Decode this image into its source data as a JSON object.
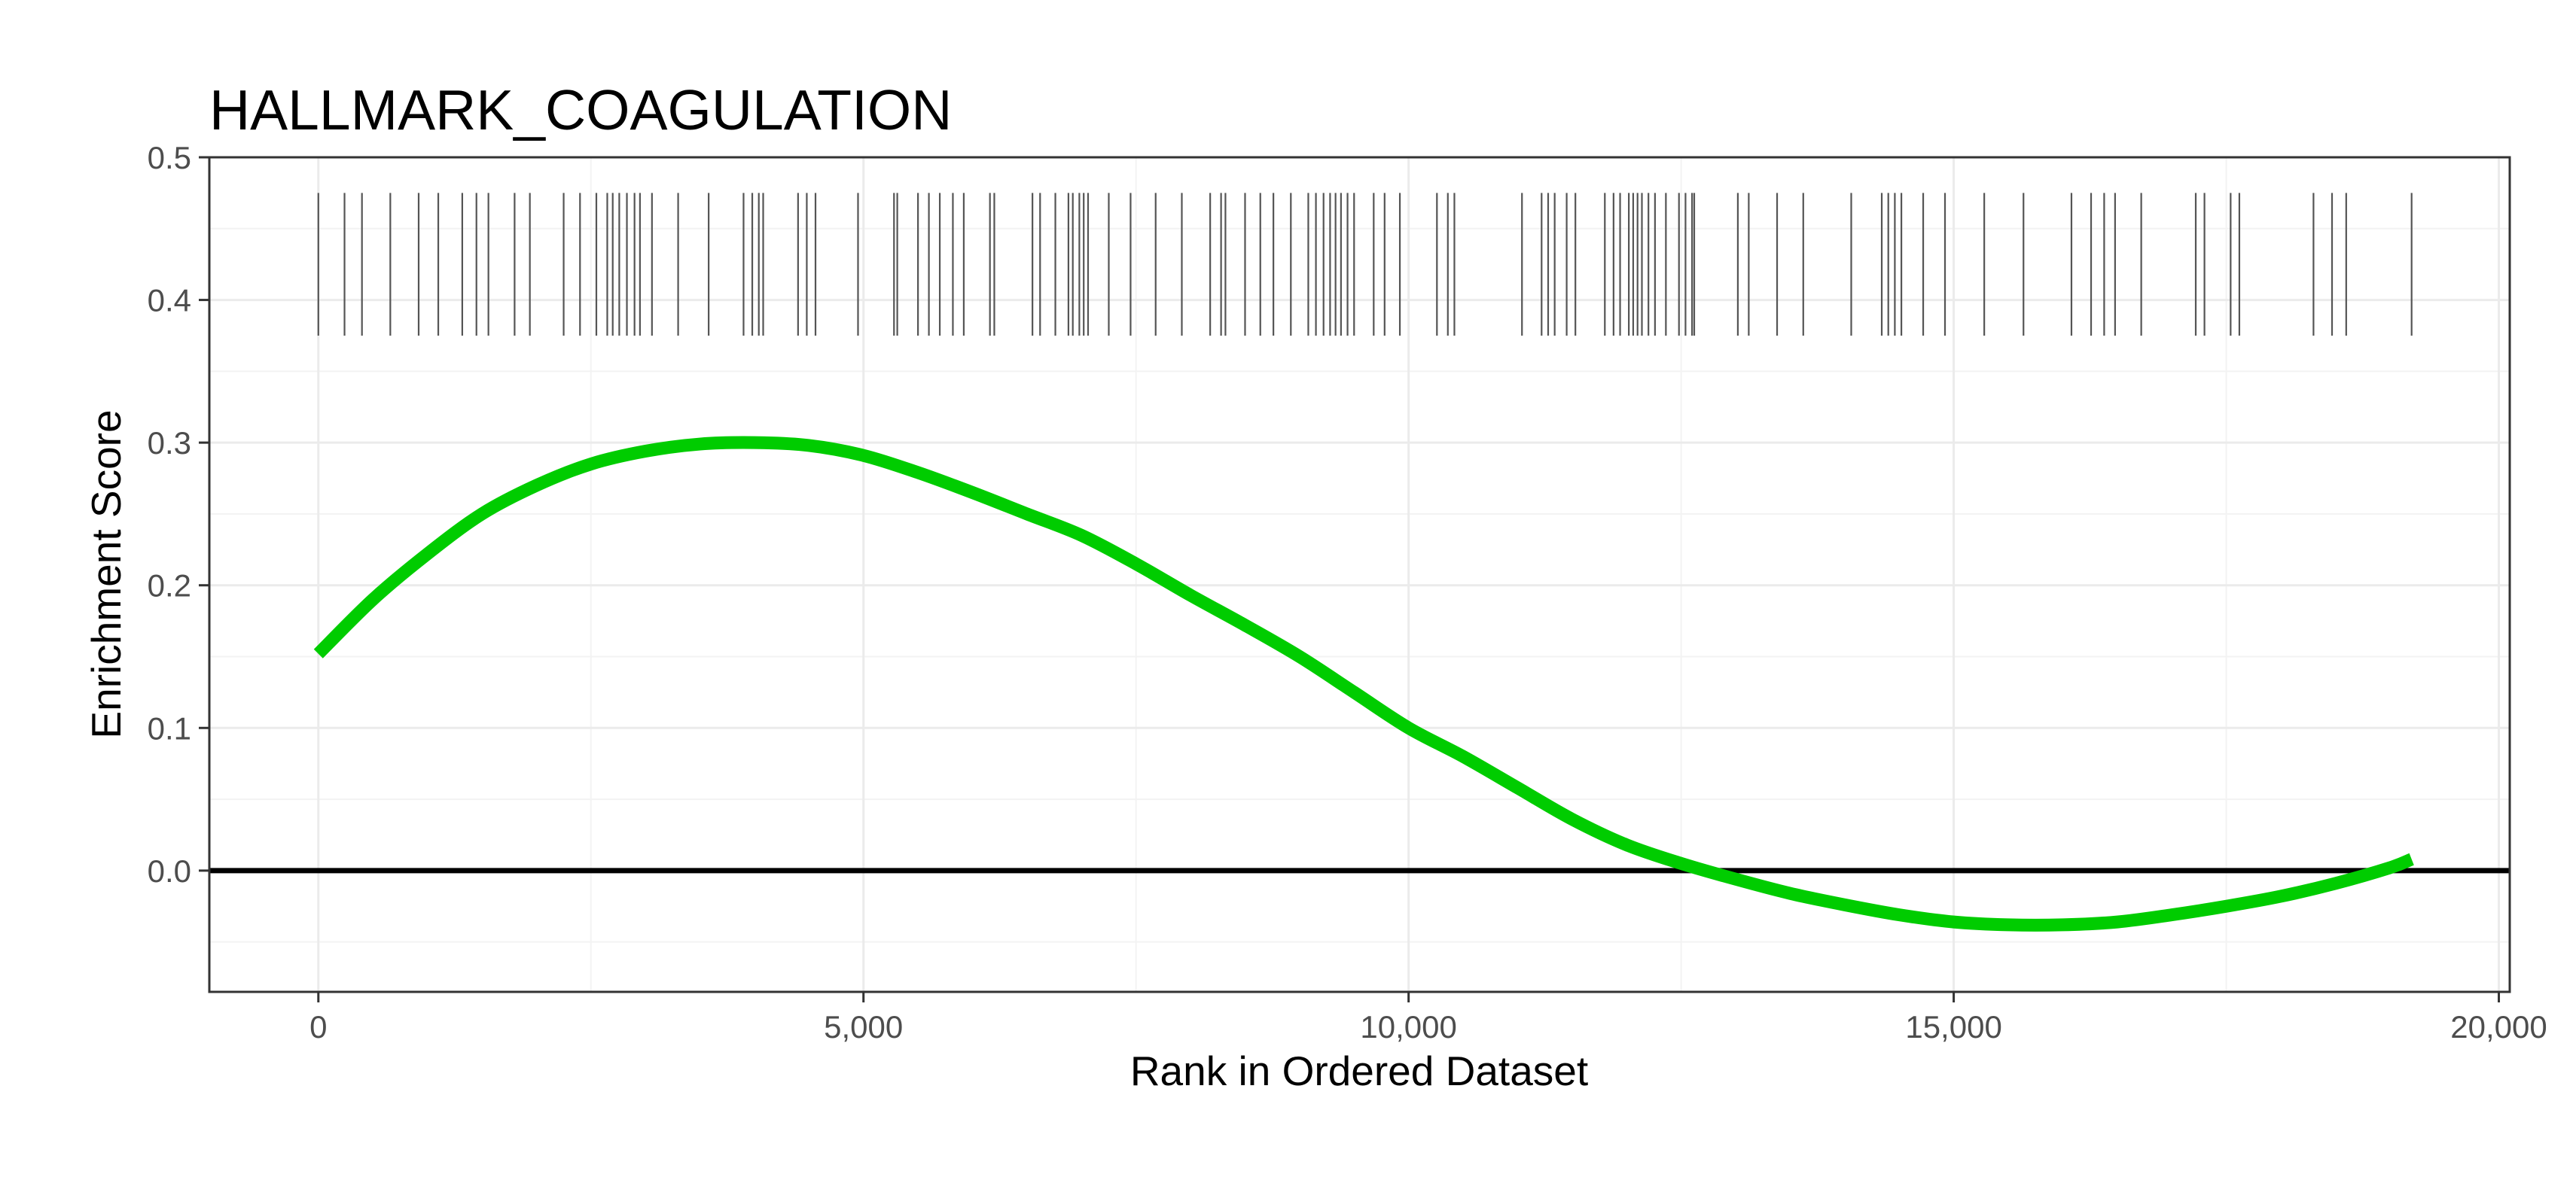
{
  "chart_data": {
    "type": "line",
    "title": "HALLMARK_COAGULATION",
    "xlabel": "Rank in Ordered Dataset",
    "ylabel": "Enrichment Score",
    "xlim": [
      -1000,
      20100
    ],
    "ylim": [
      -0.085,
      0.5
    ],
    "x_ticks": [
      0,
      5000,
      10000,
      15000,
      20000
    ],
    "x_tick_labels": [
      "0",
      "5,000",
      "10,000",
      "15,000",
      "20,000"
    ],
    "y_ticks": [
      0.0,
      0.1,
      0.2,
      0.3,
      0.4,
      0.5
    ],
    "y_tick_labels": [
      "0.0",
      "0.1",
      "0.2",
      "0.3",
      "0.4",
      "0.5"
    ],
    "grid": true,
    "legend": "none",
    "curve_color": "#00cc00",
    "zero_line_y": 0.0,
    "hit_band": [
      0.375,
      0.475
    ],
    "series": [
      {
        "x": [
          0,
          500,
          1000,
          1500,
          2000,
          2500,
          3000,
          3500,
          4000,
          4500,
          5000,
          5500,
          6000,
          6500,
          7000,
          7500,
          8000,
          8500,
          9000,
          9500,
          10000,
          10500,
          11000,
          11500,
          12000,
          12500,
          13000,
          13500,
          14000,
          14500,
          15000,
          15500,
          16000,
          16500,
          17000,
          17500,
          18000,
          18500,
          19000,
          19200
        ],
        "y": [
          0.152,
          0.19,
          0.222,
          0.25,
          0.27,
          0.285,
          0.294,
          0.299,
          0.3,
          0.298,
          0.291,
          0.279,
          0.265,
          0.25,
          0.235,
          0.215,
          0.193,
          0.172,
          0.15,
          0.125,
          0.1,
          0.08,
          0.058,
          0.036,
          0.018,
          0.005,
          -0.006,
          -0.016,
          -0.024,
          -0.031,
          -0.036,
          -0.038,
          -0.038,
          -0.036,
          -0.031,
          -0.025,
          -0.018,
          -0.009,
          0.002,
          0.008
        ]
      }
    ],
    "hits": [
      0,
      240,
      400,
      660,
      920,
      1100,
      1320,
      1450,
      1560,
      1800,
      1940,
      2250,
      2400,
      2550,
      2650,
      2700,
      2760,
      2830,
      2900,
      2950,
      3060,
      3300,
      3580,
      3900,
      3980,
      4040,
      4080,
      4400,
      4480,
      4560,
      4950,
      5280,
      5310,
      5500,
      5600,
      5700,
      5820,
      5920,
      6160,
      6200,
      6550,
      6620,
      6760,
      6880,
      6920,
      6980,
      7020,
      7060,
      7250,
      7450,
      7680,
      7920,
      8180,
      8280,
      8320,
      8500,
      8640,
      8760,
      8920,
      9080,
      9150,
      9220,
      9280,
      9330,
      9380,
      9440,
      9500,
      9680,
      9780,
      9920,
      10260,
      10360,
      10420,
      11040,
      11220,
      11280,
      11340,
      11450,
      11530,
      11800,
      11880,
      11940,
      12020,
      12060,
      12100,
      12140,
      12200,
      12260,
      12360,
      12480,
      12540,
      12600,
      12620,
      13020,
      13120,
      13380,
      13620,
      14060,
      14340,
      14400,
      14460,
      14520,
      14720,
      14920,
      15280,
      15640,
      16080,
      16260,
      16380,
      16480,
      16720,
      17220,
      17300,
      17540,
      17620,
      18300,
      18470,
      18600,
      19200
    ]
  }
}
